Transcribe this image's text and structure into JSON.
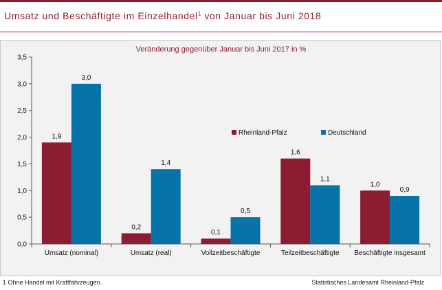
{
  "header": {
    "title": "Umsatz und Beschäftigte im Einzelhandel",
    "title_sup": "1",
    "title_rest": " von Januar bis Juni 2018"
  },
  "footnote": "1 Ohne Handel mit Kraftfahrzeugen.",
  "source": "Statistisches Landesamt Rheinland-Pfalz",
  "colors": {
    "brand": "#8c1d2e",
    "rlp": "#8b1d33",
    "de": "#0573a8"
  },
  "chart_data": {
    "type": "bar",
    "title": "",
    "subtitle": "Veränderung gegenüber Januar bis Juni 2017 in %",
    "categories": [
      "Umsatz (nominal)",
      "Umsatz (real)",
      "Vollzeitbeschäftigte",
      "Teilzeitbeschäftigte",
      "Beschäftigte insgesamt"
    ],
    "series": [
      {
        "name": "Rheinland-Pfalz",
        "values": [
          1.9,
          0.2,
          0.1,
          1.6,
          1.0
        ],
        "labels": [
          "1,9",
          "0,2",
          "0,1",
          "1,6",
          "1,0"
        ],
        "color": "#8b1d33"
      },
      {
        "name": "Deutschland",
        "values": [
          3.0,
          1.4,
          0.5,
          1.1,
          0.9
        ],
        "labels": [
          "3,0",
          "1,4",
          "0,5",
          "1,1",
          "0,9"
        ],
        "color": "#0573a8"
      }
    ],
    "ylim": [
      0,
      3.5
    ],
    "yticks": [
      "0,0",
      "0,5",
      "1,0",
      "1,5",
      "2,0",
      "2,5",
      "3,0",
      "3,5"
    ],
    "xlabel": "",
    "ylabel": "",
    "grid": false,
    "legend": "upper-right"
  }
}
